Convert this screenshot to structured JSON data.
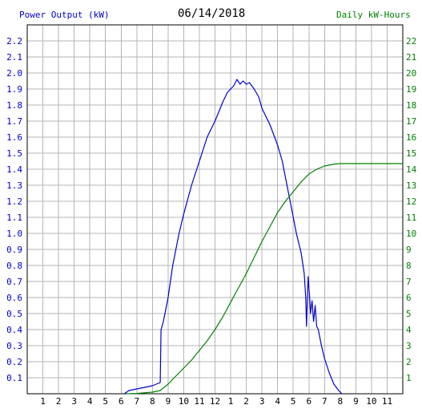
{
  "header": {
    "left_label": "Power Output (kW)",
    "date": "06/14/2018",
    "right_label": "Daily kW-Hours"
  },
  "colors": {
    "left_axis": "#0000cc",
    "right_axis": "#008000",
    "power_line": "#0000cc",
    "energy_line": "#008000",
    "grid": "#b4b4b4",
    "frame": "#000000"
  },
  "chart_data": {
    "type": "line",
    "title": "06/14/2018",
    "ylabel": "Power Output (kW)",
    "y2label": "Daily kW-Hours",
    "x_ticks": [
      "1",
      "2",
      "3",
      "4",
      "5",
      "6",
      "7",
      "8",
      "9",
      "10",
      "11",
      "12",
      "1",
      "2",
      "3",
      "4",
      "5",
      "6",
      "7",
      "8",
      "9",
      "10",
      "11"
    ],
    "y_ticks": [
      "0.1",
      "0.2",
      "0.3",
      "0.4",
      "0.5",
      "0.6",
      "0.7",
      "0.8",
      "0.9",
      "1.0",
      "1.1",
      "1.2",
      "1.3",
      "1.4",
      "1.5",
      "1.6",
      "1.7",
      "1.8",
      "1.9",
      "2.0",
      "2.1",
      "2.2"
    ],
    "y2_ticks": [
      "1",
      "2",
      "3",
      "4",
      "5",
      "6",
      "7",
      "8",
      "9",
      "10",
      "11",
      "12",
      "13",
      "14",
      "15",
      "16",
      "17",
      "18",
      "19",
      "20",
      "21",
      "22"
    ],
    "xlim": [
      0,
      24
    ],
    "ylim": [
      0,
      2.3
    ],
    "y2lim": [
      0,
      23
    ],
    "grid": true,
    "series": [
      {
        "name": "Power Output (kW)",
        "axis": "left",
        "color": "#0000cc",
        "points": [
          [
            6.2,
            0
          ],
          [
            6.5,
            0.02
          ],
          [
            7,
            0.03
          ],
          [
            7.5,
            0.04
          ],
          [
            8,
            0.05
          ],
          [
            8.5,
            0.07
          ],
          [
            8.55,
            0.4
          ],
          [
            8.7,
            0.45
          ],
          [
            9,
            0.6
          ],
          [
            9.3,
            0.8
          ],
          [
            9.7,
            1.0
          ],
          [
            10,
            1.12
          ],
          [
            10.5,
            1.3
          ],
          [
            11,
            1.45
          ],
          [
            11.5,
            1.6
          ],
          [
            12,
            1.7
          ],
          [
            12.5,
            1.82
          ],
          [
            12.8,
            1.88
          ],
          [
            13,
            1.9
          ],
          [
            13.2,
            1.92
          ],
          [
            13.4,
            1.96
          ],
          [
            13.6,
            1.93
          ],
          [
            13.8,
            1.95
          ],
          [
            14,
            1.93
          ],
          [
            14.2,
            1.94
          ],
          [
            14.5,
            1.9
          ],
          [
            14.8,
            1.85
          ],
          [
            15,
            1.78
          ],
          [
            15.5,
            1.68
          ],
          [
            16,
            1.55
          ],
          [
            16.3,
            1.45
          ],
          [
            16.6,
            1.3
          ],
          [
            16.9,
            1.15
          ],
          [
            17.2,
            1.0
          ],
          [
            17.5,
            0.88
          ],
          [
            17.7,
            0.75
          ],
          [
            17.8,
            0.6
          ],
          [
            17.85,
            0.42
          ],
          [
            17.95,
            0.73
          ],
          [
            18.05,
            0.6
          ],
          [
            18.1,
            0.5
          ],
          [
            18.2,
            0.58
          ],
          [
            18.3,
            0.45
          ],
          [
            18.4,
            0.55
          ],
          [
            18.5,
            0.42
          ],
          [
            18.6,
            0.4
          ],
          [
            18.8,
            0.3
          ],
          [
            19,
            0.22
          ],
          [
            19.3,
            0.13
          ],
          [
            19.6,
            0.06
          ],
          [
            19.9,
            0.02
          ],
          [
            20.1,
            0
          ]
        ]
      },
      {
        "name": "Daily kW-Hours",
        "axis": "right",
        "color": "#008000",
        "points": [
          [
            6.3,
            0
          ],
          [
            7,
            0.02
          ],
          [
            8,
            0.1
          ],
          [
            8.5,
            0.2
          ],
          [
            9,
            0.6
          ],
          [
            9.5,
            1.1
          ],
          [
            10,
            1.6
          ],
          [
            10.5,
            2.1
          ],
          [
            11,
            2.7
          ],
          [
            11.5,
            3.3
          ],
          [
            12,
            4.0
          ],
          [
            12.5,
            4.8
          ],
          [
            13,
            5.7
          ],
          [
            13.5,
            6.6
          ],
          [
            14,
            7.5
          ],
          [
            14.5,
            8.5
          ],
          [
            15,
            9.5
          ],
          [
            15.5,
            10.4
          ],
          [
            16,
            11.3
          ],
          [
            16.5,
            12.0
          ],
          [
            17,
            12.6
          ],
          [
            17.5,
            13.2
          ],
          [
            18,
            13.7
          ],
          [
            18.5,
            14.0
          ],
          [
            19,
            14.2
          ],
          [
            19.5,
            14.3
          ],
          [
            20,
            14.35
          ],
          [
            21,
            14.35
          ],
          [
            22,
            14.35
          ],
          [
            23,
            14.35
          ],
          [
            24,
            14.35
          ]
        ]
      }
    ]
  }
}
